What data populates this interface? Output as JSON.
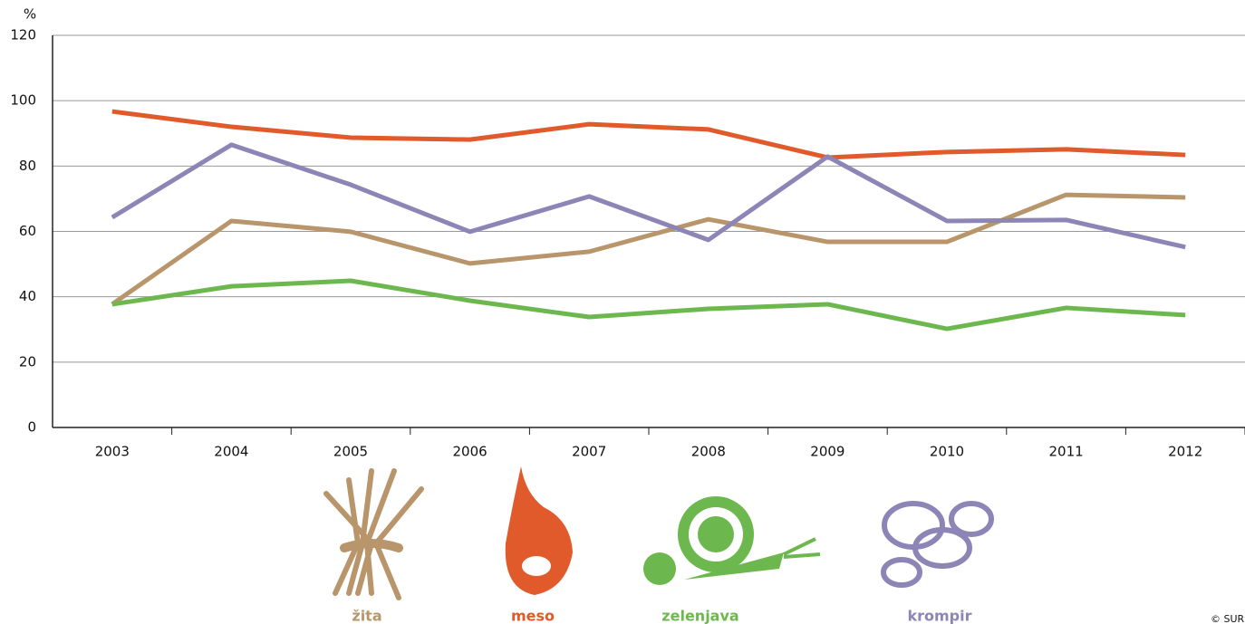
{
  "chart_data": {
    "type": "line",
    "y_label": "%",
    "categories": [
      "2003",
      "2004",
      "2005",
      "2006",
      "2007",
      "2008",
      "2009",
      "2010",
      "2011",
      "2012"
    ],
    "series": [
      {
        "name": "žita",
        "color": "#b8956a",
        "values": [
          37.7,
          63.2,
          59.9,
          50.2,
          53.8,
          63.7,
          56.8,
          56.8,
          71.2,
          70.4
        ]
      },
      {
        "name": "meso",
        "color": "#e05a2b",
        "values": [
          96.7,
          92.0,
          88.7,
          88.1,
          92.8,
          91.2,
          82.6,
          84.3,
          85.1,
          83.4
        ]
      },
      {
        "name": "zelenjava",
        "color": "#6cb84f",
        "values": [
          37.7,
          43.2,
          44.9,
          38.8,
          33.8,
          36.3,
          37.7,
          30.2,
          36.6,
          34.4
        ]
      },
      {
        "name": "krompir",
        "color": "#8c85b5",
        "values": [
          64.3,
          86.5,
          74.3,
          59.9,
          70.7,
          57.4,
          82.9,
          63.2,
          63.5,
          55.2
        ]
      }
    ],
    "ylim": [
      0,
      120
    ],
    "yticks": [
      0,
      20,
      40,
      60,
      80,
      100,
      120
    ],
    "grid": true,
    "source": "© SURS"
  }
}
